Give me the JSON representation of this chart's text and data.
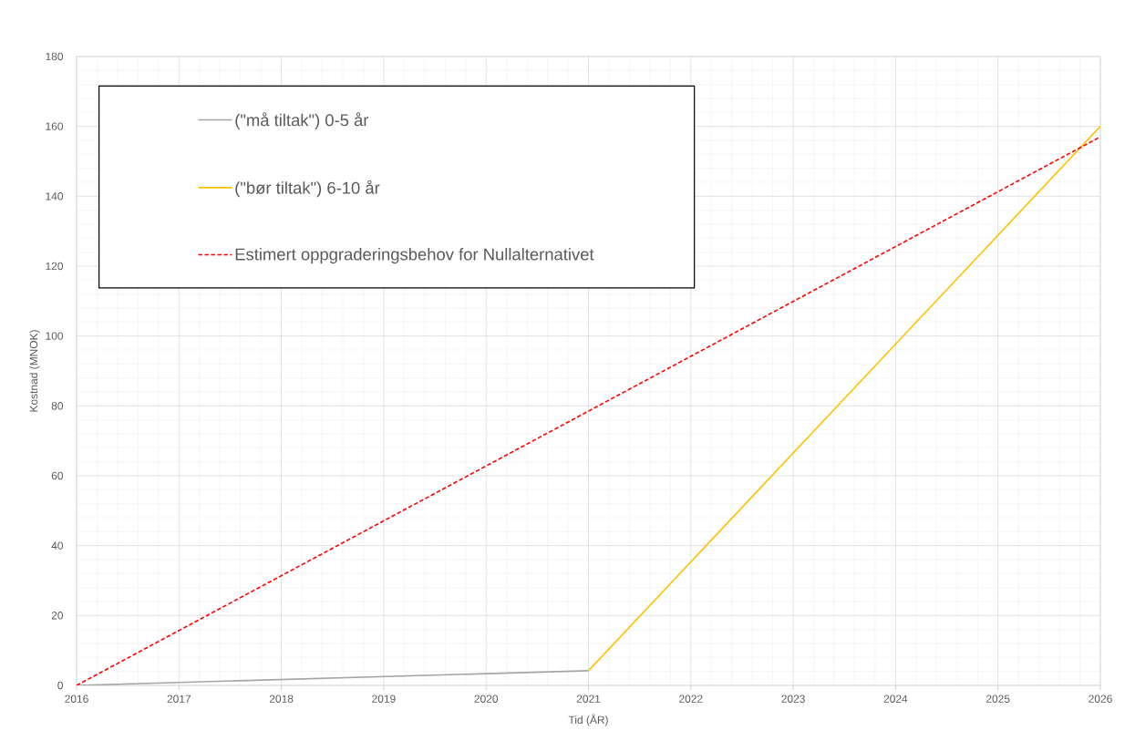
{
  "chart_data": {
    "type": "line",
    "xlabel": "Tid (ÅR)",
    "ylabel": "Kostnad (MNOK)",
    "series": [
      {
        "name": "(\"må tiltak\") 0-5 år",
        "color": "#a5a5a5",
        "x": [
          2016,
          2021
        ],
        "values": [
          0,
          4.2
        ]
      },
      {
        "name": "(\"bør tiltak\") 6-10 år",
        "color": "#ffc000",
        "x": [
          2021,
          2026
        ],
        "values": [
          4.2,
          160
        ]
      },
      {
        "name": "Estimert oppgraderingsbehov for Nullalternativet",
        "color": "#ff0000",
        "x": [
          2016,
          2026
        ],
        "values": [
          0,
          157
        ],
        "line_style": "dashed"
      }
    ],
    "xlim": [
      2016,
      2026
    ],
    "ylim": [
      0,
      180
    ],
    "xticks": [
      2016,
      2017,
      2018,
      2019,
      2020,
      2021,
      2022,
      2023,
      2024,
      2025,
      2026
    ],
    "yticks": [
      0,
      20,
      40,
      60,
      80,
      100,
      120,
      140,
      160,
      180
    ],
    "grid": true,
    "legend": "top left"
  }
}
